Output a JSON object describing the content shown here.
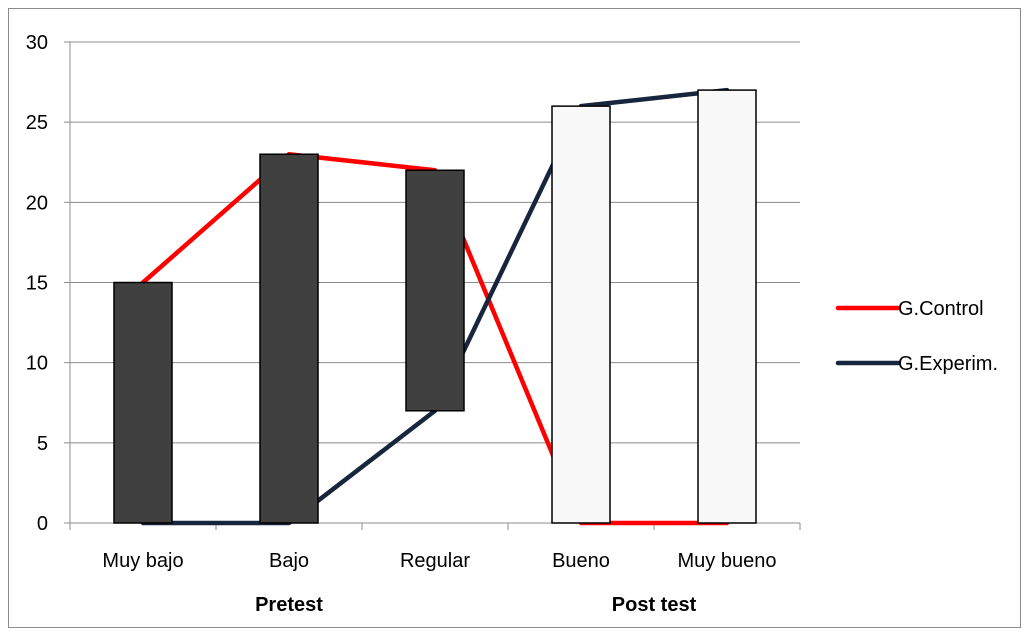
{
  "chart_data": {
    "type": "stock",
    "categories": [
      "Muy bajo",
      "Bajo",
      "Regular",
      "Bueno",
      "Muy bueno"
    ],
    "groups": [
      {
        "label": "Pretest",
        "categories": [
          "Muy bajo",
          "Bajo",
          "Regular"
        ]
      },
      {
        "label": "Post test",
        "categories": [
          "Bueno",
          "Muy bueno"
        ]
      }
    ],
    "series": [
      {
        "name": "G.Control",
        "color": "#ff0000",
        "values": [
          15,
          23,
          22,
          0,
          0
        ]
      },
      {
        "name": "G.Experim.",
        "color": "#17253d",
        "values": [
          0,
          0,
          7,
          26,
          27
        ]
      }
    ],
    "up_down_bars": {
      "down_color": "#404040",
      "up_color": "#f8f8f8",
      "outline": "#000000"
    },
    "ylim": [
      0,
      30
    ],
    "yticks": [
      0,
      5,
      10,
      15,
      20,
      25,
      30
    ],
    "grid": true,
    "legend_position": "right"
  }
}
